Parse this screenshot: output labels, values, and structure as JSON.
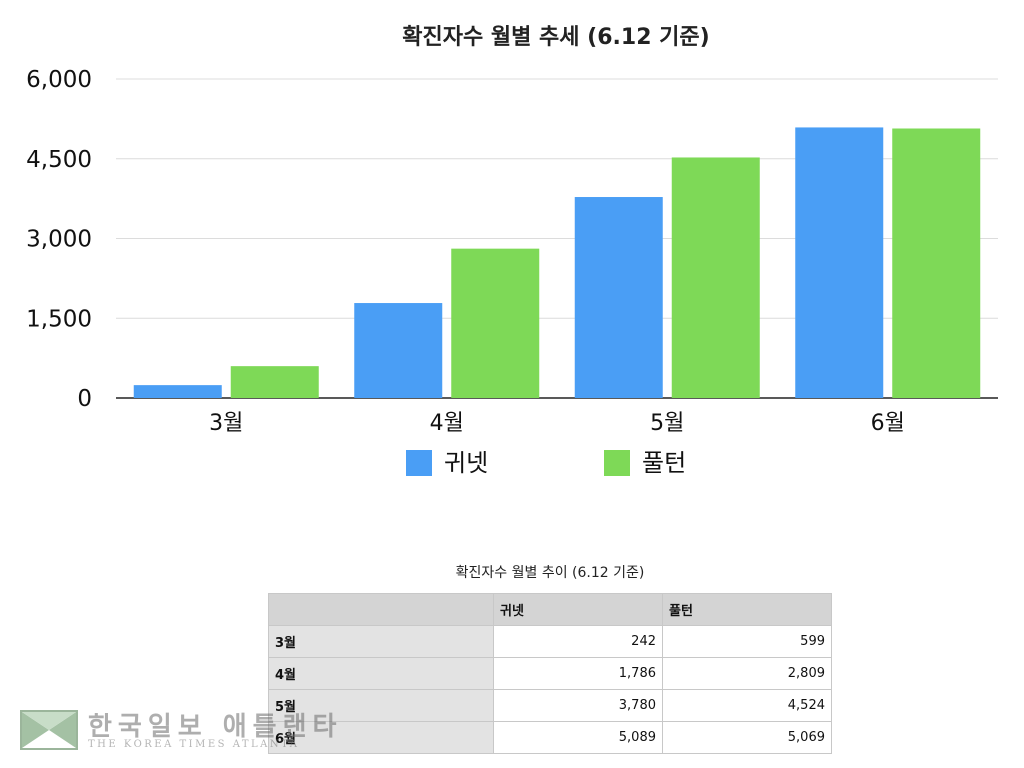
{
  "chart_data": {
    "type": "bar",
    "title": "확진자수 월별 추세 (6.12 기준)",
    "categories": [
      "3월",
      "4월",
      "5월",
      "6월"
    ],
    "series": [
      {
        "name": "귀넷",
        "color": "#4a9ef5",
        "values": [
          242,
          1786,
          3780,
          5089
        ]
      },
      {
        "name": "풀턴",
        "color": "#7ed957",
        "values": [
          599,
          2809,
          4524,
          5069
        ]
      }
    ],
    "ylim": [
      0,
      6000
    ],
    "yticks": [
      {
        "value": 0,
        "label": "0"
      },
      {
        "value": 1500,
        "label": "1,500"
      },
      {
        "value": 3000,
        "label": "3,000"
      },
      {
        "value": 4500,
        "label": "4,500"
      },
      {
        "value": 6000,
        "label": "6,000"
      }
    ],
    "grid": true,
    "legend": "bottom"
  },
  "table": {
    "caption": "확진자수 월별 추이 (6.12 기준)",
    "headers": [
      "",
      "귀넷",
      "풀턴"
    ],
    "rows": [
      {
        "label": "3월",
        "values": [
          "242",
          "599"
        ]
      },
      {
        "label": "4월",
        "values": [
          "1,786",
          "2,809"
        ]
      },
      {
        "label": "5월",
        "values": [
          "3,780",
          "4,524"
        ]
      },
      {
        "label": "6월",
        "values": [
          "5,089",
          "5,069"
        ]
      }
    ]
  },
  "watermark": {
    "name": "한국일보 애틀랜타",
    "subtitle": "THE KOREA TIMES ATLANTA",
    "logo_icon": "korea-times-logo-icon"
  }
}
